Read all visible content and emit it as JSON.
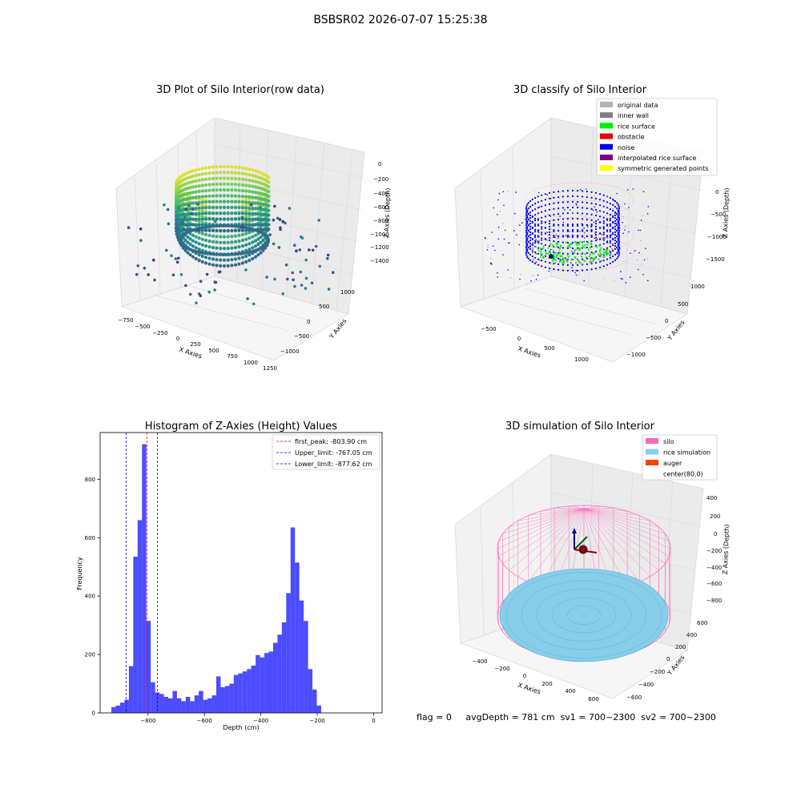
{
  "suptitle": "BSBSR02 2026-07-07 15:25:38",
  "footer": {
    "flag": "flag = 0",
    "avg": "avgDepth = 781 cm",
    "sv1": "sv1 = 700~2300",
    "sv2": "sv2 = 700~2300"
  },
  "chart_data": [
    {
      "type": "scatter",
      "projection": "3d",
      "title": "3D Plot of Silo Interior(row data)",
      "xlabel": "X Axies",
      "ylabel": "Y Axies",
      "zlabel": "Z Axies (Depth)",
      "xticks": [
        "−750",
        "−500",
        "−250",
        "0",
        "250",
        "500",
        "750",
        "1000",
        "1250"
      ],
      "yticks": [
        "−1000",
        "−500",
        "0",
        "500",
        "1000"
      ],
      "zticks": [
        "0",
        "−200",
        "−400",
        "−600",
        "−800",
        "−1000",
        "−1200",
        "−1400"
      ],
      "colormap": "viridis",
      "legend": null
    },
    {
      "type": "scatter",
      "projection": "3d",
      "title": "3D classify of Silo Interior",
      "xlabel": "X Axies",
      "ylabel": "Y Axies",
      "zlabel": "Z Axies (Depth)",
      "xticks": [
        "−500",
        "0",
        "500",
        "1000"
      ],
      "yticks": [
        "−1000",
        "−500",
        "0",
        "500",
        "1000"
      ],
      "zticks": [
        "0",
        "−500",
        "−1000",
        "−1500"
      ],
      "legend_position": "top-right",
      "series": [
        {
          "name": "original data",
          "color": "#b3b3b3"
        },
        {
          "name": "inner wall",
          "color": "#808080"
        },
        {
          "name": "rice surface",
          "color": "#00ee00"
        },
        {
          "name": "obstacle",
          "color": "#ee0000"
        },
        {
          "name": "noise",
          "color": "#0000ee"
        },
        {
          "name": "interpolated rice surface",
          "color": "#800080"
        },
        {
          "name": "symmetric generated points",
          "color": "#ffff00"
        }
      ]
    },
    {
      "type": "bar",
      "title": "Histogram of Z-Axies (Height) Values",
      "xlabel": "Depth (cm)",
      "ylabel": "Frequency",
      "xlim": [
        -970,
        30
      ],
      "ylim": [
        0,
        960
      ],
      "xticks": [
        -800,
        -600,
        -400,
        -200,
        0
      ],
      "xtick_labels": [
        "−800",
        "−600",
        "−400",
        "−200",
        "0"
      ],
      "yticks": [
        0,
        200,
        400,
        600,
        800
      ],
      "bar_color": "#0000ff",
      "bin_start": -930,
      "bin_width": 15.5,
      "values": [
        20,
        25,
        35,
        45,
        160,
        535,
        660,
        920,
        315,
        105,
        70,
        65,
        55,
        50,
        75,
        50,
        40,
        55,
        40,
        60,
        75,
        45,
        50,
        60,
        125,
        88,
        92,
        100,
        130,
        135,
        142,
        150,
        162,
        198,
        190,
        205,
        210,
        240,
        268,
        310,
        410,
        635,
        515,
        385,
        315,
        150,
        80,
        25
      ],
      "vlines": [
        {
          "name": "first_peak: -803.90 cm",
          "x": -803.9,
          "color": "#ff0000"
        },
        {
          "name": "Upper_limit: -767.05 cm",
          "x": -767.05,
          "color": "#0000ff"
        },
        {
          "name": "Lower_limit: -877.62 cm",
          "x": -877.62,
          "color": "#0000ff"
        }
      ],
      "legend_position": "top-right",
      "grid": false
    },
    {
      "type": "surface",
      "projection": "3d",
      "title": "3D simulation of Silo Interior",
      "xlabel": "X Axies",
      "ylabel": "Y Axies",
      "zlabel": "Z Axies (Depth)",
      "xticks": [
        "−400",
        "−200",
        "0",
        "200",
        "400",
        "600"
      ],
      "yticks": [
        "−600",
        "−400",
        "−200",
        "0",
        "200",
        "400",
        "600"
      ],
      "zticks": [
        "400",
        "200",
        "0",
        "−200",
        "−400",
        "−600",
        "−800"
      ],
      "legend_position": "top-right",
      "series": [
        {
          "name": "silo",
          "color": "#ff69b4"
        },
        {
          "name": "rice simulation",
          "color": "#87ceeb"
        },
        {
          "name": "auger",
          "color": "#ff4500"
        },
        {
          "name": "center(80,0)",
          "color": "#ffffff"
        }
      ]
    }
  ]
}
